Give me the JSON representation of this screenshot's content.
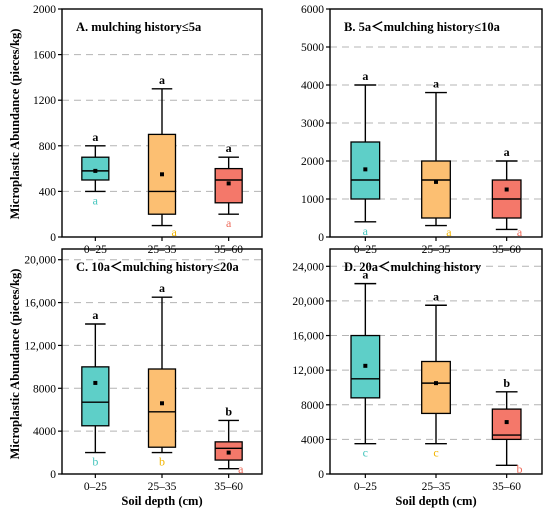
{
  "figure": {
    "ylabel": "Microplastic Abundance (pieces/kg)",
    "xlabel": "Soil depth (cm)"
  },
  "colors": {
    "teal": "#5ecfc8",
    "orange": "#fcbf72",
    "salmon": "#f4786a",
    "teal_letter": "#45c5bd",
    "orange_letter": "#f2b500",
    "salmon_letter": "#ee6a5a",
    "grid": "#b4b4b4",
    "ink": "#000000"
  },
  "chart_data": [
    {
      "type": "box",
      "title": "A. mulching history≤5a",
      "categories": [
        "0–25",
        "25–35",
        "35–60"
      ],
      "ylim": [
        0,
        2000
      ],
      "yticks": [
        0,
        400,
        800,
        1200,
        1600,
        2000
      ],
      "ytick_labels": [
        "0",
        "400",
        "800",
        "1200",
        "1600",
        "2000"
      ],
      "grid": true,
      "boxes": [
        {
          "min": 400,
          "q1": 500,
          "median": 580,
          "q3": 700,
          "max": 800,
          "mean": 580,
          "top_letter": "a",
          "bottom_letter": "a"
        },
        {
          "min": 100,
          "q1": 200,
          "median": 400,
          "q3": 900,
          "max": 1300,
          "mean": 550,
          "top_letter": "a",
          "bottom_letter": "a"
        },
        {
          "min": 200,
          "q1": 300,
          "median": 500,
          "q3": 600,
          "max": 700,
          "mean": 470,
          "top_letter": "a",
          "bottom_letter": "a"
        }
      ]
    },
    {
      "type": "box",
      "title": "B. 5a＜mulching history≤10a",
      "categories": [
        "0–25",
        "25–35",
        "35–60"
      ],
      "ylim": [
        0,
        6000
      ],
      "yticks": [
        0,
        1000,
        2000,
        3000,
        4000,
        5000,
        6000
      ],
      "ytick_labels": [
        "0",
        "1000",
        "2000",
        "3000",
        "4000",
        "5000",
        "6000"
      ],
      "grid": true,
      "boxes": [
        {
          "min": 400,
          "q1": 1000,
          "median": 1500,
          "q3": 2500,
          "max": 4000,
          "mean": 1780,
          "top_letter": "a",
          "bottom_letter": "a"
        },
        {
          "min": 300,
          "q1": 500,
          "median": 1500,
          "q3": 2000,
          "max": 3800,
          "mean": 1450,
          "top_letter": "a",
          "bottom_letter": "a"
        },
        {
          "min": 200,
          "q1": 500,
          "median": 1000,
          "q3": 1500,
          "max": 2000,
          "mean": 1250,
          "top_letter": "a",
          "bottom_letter": "a"
        }
      ]
    },
    {
      "type": "box",
      "title": "C. 10a＜mulching history≤20a",
      "categories": [
        "0–25",
        "25–35",
        "35–60"
      ],
      "ylim": [
        0,
        21000
      ],
      "yticks": [
        0,
        4000,
        8000,
        12000,
        16000,
        20000
      ],
      "ytick_labels": [
        "0",
        "4000",
        "8000",
        "12,000",
        "16,000",
        "20,000"
      ],
      "grid": true,
      "boxes": [
        {
          "min": 2000,
          "q1": 4500,
          "median": 6700,
          "q3": 10000,
          "max": 14000,
          "mean": 8500,
          "top_letter": "a",
          "bottom_letter": "b"
        },
        {
          "min": 2000,
          "q1": 2500,
          "median": 5800,
          "q3": 9800,
          "max": 16500,
          "mean": 6600,
          "top_letter": "a",
          "bottom_letter": "b"
        },
        {
          "min": 500,
          "q1": 1300,
          "median": 2400,
          "q3": 3000,
          "max": 5000,
          "mean": 2000,
          "top_letter": "b",
          "bottom_letter": "a"
        }
      ]
    },
    {
      "type": "box",
      "title": "D. 20a＜mulching history",
      "categories": [
        "0–25",
        "25–35",
        "35–60"
      ],
      "ylim": [
        0,
        26000
      ],
      "yticks": [
        0,
        4000,
        8000,
        12000,
        16000,
        20000,
        24000
      ],
      "ytick_labels": [
        "0",
        "4000",
        "8000",
        "12,000",
        "16,000",
        "20,000",
        "24,000"
      ],
      "grid": true,
      "boxes": [
        {
          "min": 3500,
          "q1": 8800,
          "median": 11000,
          "q3": 16000,
          "max": 22000,
          "mean": 12500,
          "top_letter": "a",
          "bottom_letter": "c"
        },
        {
          "min": 3500,
          "q1": 7000,
          "median": 10500,
          "q3": 13000,
          "max": 19500,
          "mean": 10500,
          "top_letter": "a",
          "bottom_letter": "c"
        },
        {
          "min": 1000,
          "q1": 4000,
          "median": 4500,
          "q3": 7500,
          "max": 9500,
          "mean": 6000,
          "top_letter": "b",
          "bottom_letter": "b"
        }
      ]
    }
  ]
}
